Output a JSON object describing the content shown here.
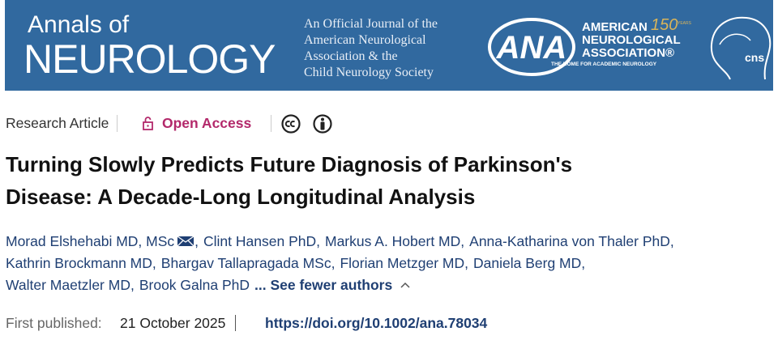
{
  "banner": {
    "journal_small": "Annals of",
    "journal_large": "NEUROLOGY",
    "tagline": [
      "An Official Journal of the",
      "American Neurological",
      "Association & the",
      "Child Neurology Society"
    ],
    "ana": {
      "abbr": "ANA",
      "lines": [
        "AMERICAN",
        "NEUROLOGICAL",
        "ASSOCIATION®"
      ],
      "anniversary": "150",
      "anniversary_unit": "YEARS",
      "motto": "THE HOME FOR ACADEMIC NEUROLOGY"
    },
    "cns": "cns"
  },
  "article": {
    "type": "Research Article",
    "access": "Open Access",
    "title_lines": [
      "Turning Slowly Predicts Future Diagnosis of Parkinson's",
      "Disease: A Decade-Long Longitudinal Analysis"
    ],
    "authors": [
      "Morad Elshehabi MD, MSc",
      "Clint Hansen PhD",
      "Markus A. Hobert MD",
      "Anna-Katharina von Thaler PhD",
      "Kathrin Brockmann MD",
      "Bhargav Tallapragada MSc",
      "Florian Metzger MD",
      "Daniela Berg MD",
      "Walter Maetzler MD",
      "Brook Galna PhD"
    ],
    "separator": ",",
    "toggle": "... See fewer authors",
    "published_label": "First published:",
    "published_date": "21 October 2025",
    "doi": "https://doi.org/10.1002/ana.78034"
  }
}
